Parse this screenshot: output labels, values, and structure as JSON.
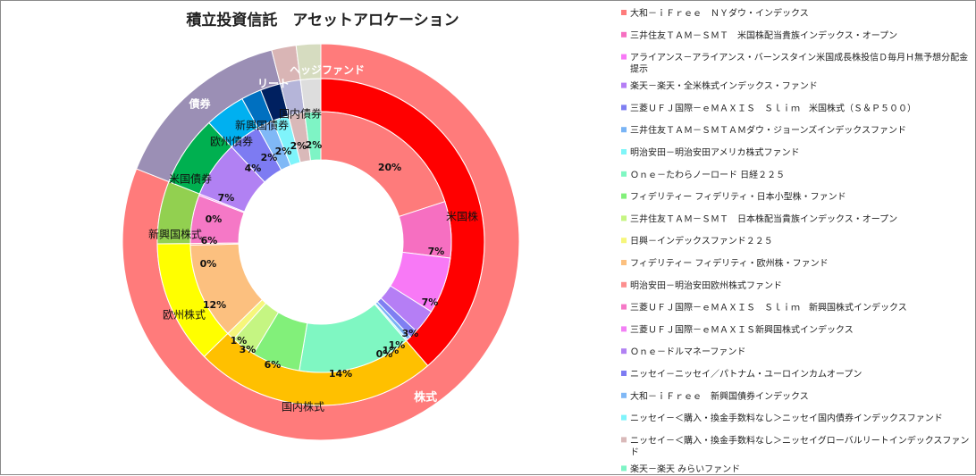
{
  "chart_data": {
    "type": "pie",
    "title": "積立投資信託　アセットアロケーション",
    "rings": {
      "inner": {
        "series": [
          {
            "name": "大和－ｉＦｒｅｅ　ＮＹダウ・インデックス",
            "value": 20,
            "label": "20%",
            "color": "#fe7b7b"
          },
          {
            "name": "三井住友ＴＡＭ－ＳＭＴ　米国株配当貴族インデックス・オープン",
            "value": 7,
            "label": "7%",
            "color": "#f66fc1"
          },
          {
            "name": "アライアンス－アライアンス・バーンスタイン米国成長株投信Ｄ毎月Ｈ無予想分配金提示",
            "value": 7,
            "label": "7%",
            "color": "#f879f6"
          },
          {
            "name": "楽天－楽天・全米株式インデックス・ファンド",
            "value": 3,
            "label": "3%",
            "color": "#b57ef5"
          },
          {
            "name": "三菱ＵＦＪ国際－ｅＭＡＸＩＳ　Ｓｌｉｍ　米国株式（Ｓ＆Ｐ５００）",
            "value": 1,
            "label": "1%",
            "color": "#7f7ff2"
          },
          {
            "name": "三井住友ＴＡＭ－ＳＭＴＡＭダウ・ジョーンズインデックスファンド",
            "value": 0.5,
            "label": "1%",
            "color": "#79b4f5"
          },
          {
            "name": "明治安田－明治安田アメリカ株式ファンド",
            "value": 0.2,
            "label": "0%",
            "color": "#7ff5f8"
          },
          {
            "name": "Ｏｎｅ－たわらノーロード 日経２２５",
            "value": 14,
            "label": "14%",
            "color": "#7ff7c2"
          },
          {
            "name": "フィデリティー フィデリティ・日本小型株・ファンド",
            "value": 6,
            "label": "6%",
            "color": "#82f07a"
          },
          {
            "name": "三井住友ＴＡＭ－ＳＭＴ　日本株配当貴族インデックス・オープン",
            "value": 3,
            "label": "3%",
            "color": "#c5f582"
          },
          {
            "name": "日興－インデックスファンド２２５",
            "value": 1,
            "label": "1%",
            "color": "#f6f67b"
          },
          {
            "name": "フィデリティー フィデリティ・欧州株・ファンド",
            "value": 12,
            "label": "12%",
            "color": "#fcc07f"
          },
          {
            "name": "明治安田－明治安田欧州株式ファンド",
            "value": 0.2,
            "label": "0%",
            "color": "#fd8f8f"
          },
          {
            "name": "三菱ＵＦＪ国際－ｅＭＡＸＩＳ　Ｓｌｉｍ　新興国株式インデックス",
            "value": 6,
            "label": "6%",
            "color": "#f578c6"
          },
          {
            "name": "三菱ＵＦＪ国際－ｅＭＡＸＩＳ新興国株式インデックス",
            "value": 0.2,
            "label": "0%",
            "color": "#f280f5"
          },
          {
            "name": "Ｏｎｅ－ドルマネーファンド",
            "value": 7,
            "label": "7%",
            "color": "#b181f3"
          },
          {
            "name": "ニッセイ－ニッセイ／パトナム・ユーロインカムオープン",
            "value": 4,
            "label": "4%",
            "color": "#7d7bf2"
          },
          {
            "name": "大和－ｉＦｒｅｅ　新興国債券インデックス",
            "value": 2,
            "label": "2%",
            "color": "#80b8f6"
          },
          {
            "name": "ニッセイ－＜購入・換金手数料なし＞ニッセイ国内債券インデックスファンド",
            "value": 2,
            "label": "2%",
            "color": "#7ff4fb"
          },
          {
            "name": "ニッセイ－＜購入・換金手数料なし＞ニッセイグローバルリートインデックスファンド",
            "value": 2,
            "label": "2%",
            "color": "#d9b9b9"
          },
          {
            "name": "楽天－楽天 みらいファンド",
            "value": 2,
            "label": "2%",
            "color": "#7ef4c5"
          }
        ]
      },
      "middle": {
        "series": [
          {
            "name": "米国株",
            "value": 38.7,
            "color": "#ff0000"
          },
          {
            "name": "国内株式",
            "value": 24,
            "color": "#ffc000"
          },
          {
            "name": "欧州株式",
            "value": 12.2,
            "color": "#ffff00"
          },
          {
            "name": "新興国株式",
            "value": 6.2,
            "color": "#92d050"
          },
          {
            "name": "米国債券",
            "value": 7,
            "color": "#00b050"
          },
          {
            "name": "欧州債券",
            "value": 4,
            "color": "#00b0f0"
          },
          {
            "name": "新興国債券",
            "value": 2,
            "color": "#0070c0"
          },
          {
            "name": "国内債券",
            "value": 2,
            "color": "#002060"
          },
          {
            "name": "",
            "value": 2,
            "color": "#b5b5d9"
          },
          {
            "name": "",
            "value": 2,
            "color": "#dddddd"
          }
        ]
      },
      "outer": {
        "series": [
          {
            "name": "株式",
            "value": 81.1,
            "color": "#ff7b7b"
          },
          {
            "name": "債券",
            "value": 15,
            "color": "#9b8fb5"
          },
          {
            "name": "リート",
            "value": 2,
            "color": "#d9b5b5"
          },
          {
            "name": "ヘッジファンド",
            "value": 2,
            "color": "#d6dcc0"
          }
        ]
      }
    },
    "legend_position": "right"
  }
}
